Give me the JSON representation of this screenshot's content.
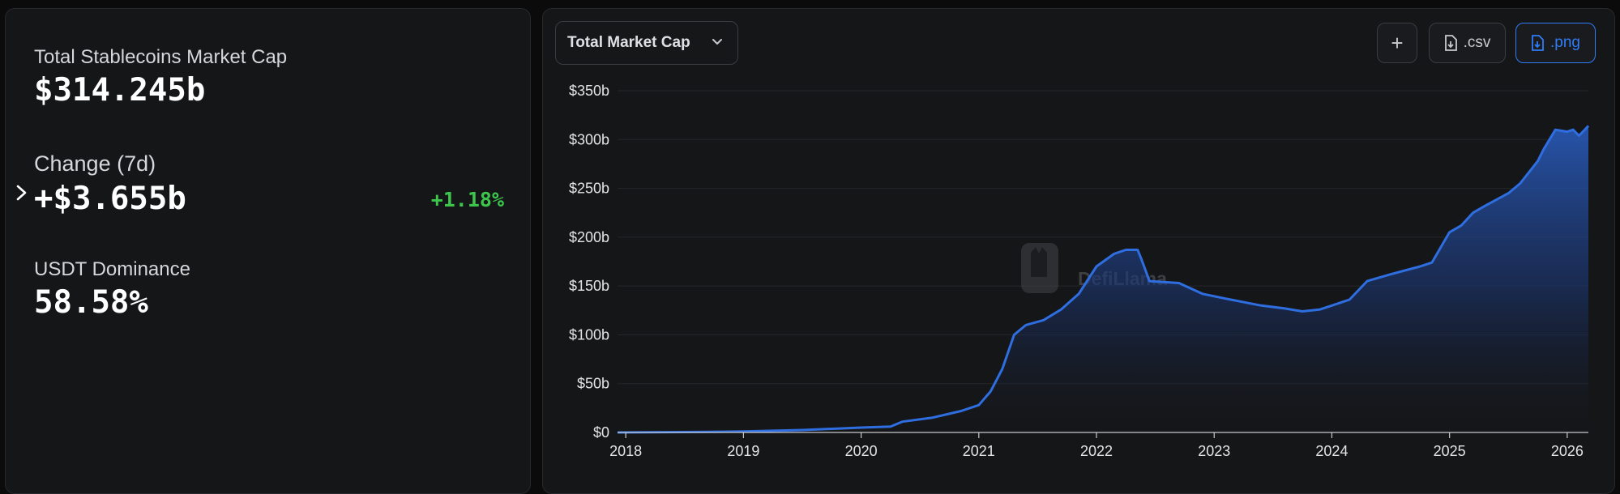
{
  "stats": {
    "market_cap_label": "Total Stablecoins Market Cap",
    "market_cap_value": "$314.245b",
    "change_label": "Change (7d)",
    "change_value": "+$3.655b",
    "change_percent": "+1.18%",
    "dominance_label": "USDT Dominance",
    "dominance_value": "58.58%"
  },
  "toolbar": {
    "dropdown_label": "Total Market Cap",
    "add_label": "+",
    "csv_label": ".csv",
    "png_label": ".png"
  },
  "watermark": {
    "text": "DefiLlama"
  },
  "colors": {
    "line": "#2f6ee0",
    "positive": "#3cc74c",
    "accent": "#2f7cf6"
  },
  "chart_data": {
    "type": "area",
    "title": "",
    "xlabel": "",
    "ylabel": "",
    "ylim": [
      0,
      350
    ],
    "y_unit": "b",
    "xlim": [
      2017.93,
      2026.18
    ],
    "x_ticks": [
      "2018",
      "2019",
      "2020",
      "2021",
      "2022",
      "2023",
      "2024",
      "2025",
      "2026"
    ],
    "y_ticks": [
      "$0",
      "$50b",
      "$100b",
      "$150b",
      "$200b",
      "$250b",
      "$300b",
      "$350b"
    ],
    "grid": true,
    "series": [
      {
        "values_x": [
          2017.93,
          2018.5,
          2019.0,
          2019.5,
          2019.8,
          2020.0,
          2020.25,
          2020.35,
          2020.6,
          2020.85,
          2021.0,
          2021.1,
          2021.2,
          2021.3,
          2021.4,
          2021.55,
          2021.7,
          2021.85,
          2022.0,
          2022.15,
          2022.25,
          2022.35,
          2022.38,
          2022.45,
          2022.7,
          2022.9,
          2023.1,
          2023.4,
          2023.6,
          2023.75,
          2023.9,
          2024.0,
          2024.15,
          2024.3,
          2024.5,
          2024.75,
          2024.85,
          2025.0,
          2025.1,
          2025.2,
          2025.3,
          2025.5,
          2025.6,
          2025.75,
          2025.8,
          2025.9,
          2026.0,
          2026.05,
          2026.1,
          2026.15,
          2026.18
        ],
        "values_y": [
          0,
          0.4,
          1,
          2.5,
          4,
          5,
          6,
          11,
          15,
          22,
          28,
          42,
          65,
          100,
          110,
          115,
          126,
          142,
          170,
          183,
          187,
          187,
          178,
          155,
          153,
          142,
          137,
          130,
          127,
          124,
          126,
          130,
          136,
          155,
          162,
          170,
          174,
          205,
          212,
          225,
          232,
          245,
          255,
          278,
          290,
          310,
          308,
          310,
          304,
          310,
          314
        ]
      }
    ]
  }
}
